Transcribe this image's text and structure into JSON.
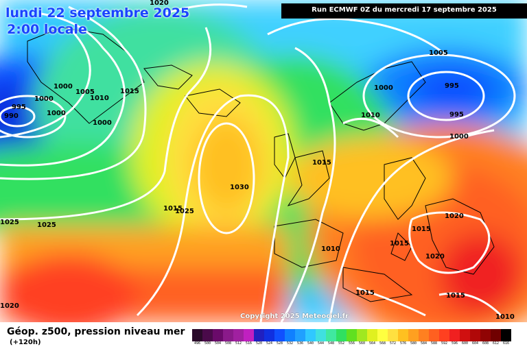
{
  "map": {
    "title_date": "lundi 22 septembre 2025",
    "title_time": "2:00 locale",
    "run_info": "Run ECMWF 0Z du mercredi 17 septembre 2025",
    "copyright": "Copyright 2025 Meteociel.fr",
    "legend_title": "Géop. z500, pression niveau mer",
    "legend_subtitle": "(+120h)",
    "isobar_labels": [
      "1020",
      "995",
      "990",
      "1000",
      "1000",
      "1005",
      "1010",
      "1015",
      "1000",
      "1000",
      "1025",
      "1025",
      "1030",
      "1025",
      "1015",
      "1005",
      "1000",
      "995",
      "995",
      "1010",
      "1000",
      "1015",
      "1020",
      "1015",
      "1015",
      "1010",
      "1020",
      "1015",
      "1010",
      "1015",
      "1020"
    ],
    "scale": {
      "labels": [
        "496",
        "500",
        "504",
        "508",
        "512",
        "516",
        "520",
        "524",
        "528",
        "532",
        "536",
        "540",
        "544",
        "548",
        "552",
        "556",
        "560",
        "564",
        "568",
        "572",
        "576",
        "580",
        "584",
        "588",
        "592",
        "596",
        "600",
        "604",
        "608",
        "612",
        "616"
      ],
      "colors": [
        "#2a0a2a",
        "#4a0a4a",
        "#6a0a6a",
        "#8a1a8a",
        "#a020a0",
        "#c020c0",
        "#2020c0",
        "#1030e0",
        "#1050ff",
        "#1080ff",
        "#20a0ff",
        "#30c8ff",
        "#40e0e0",
        "#40e8a0",
        "#30e060",
        "#60e020",
        "#a0e820",
        "#e0f020",
        "#ffff40",
        "#ffe040",
        "#ffc020",
        "#ffa020",
        "#ff8020",
        "#ff6020",
        "#ff4020",
        "#f02020",
        "#d01010",
        "#b00808",
        "#900404",
        "#700000",
        "#000000"
      ]
    }
  }
}
